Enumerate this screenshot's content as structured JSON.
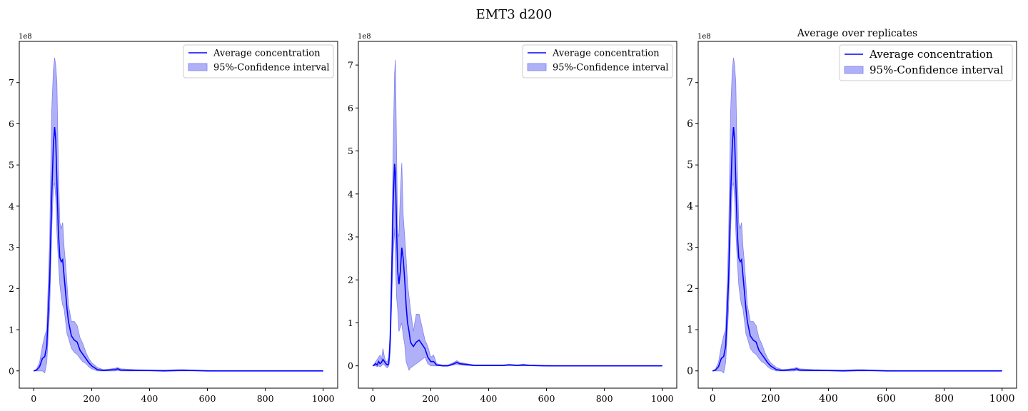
{
  "figure": {
    "title": "EMT3 d200"
  },
  "colors": {
    "line": "#0000ff",
    "band_fill": "#b0b0f8",
    "band_edge": "#8080f0"
  },
  "chart_data": [
    {
      "type": "area",
      "title": "",
      "xlabel": "",
      "ylabel": "",
      "y_offset_label": "1e8",
      "y_scale": 100000000,
      "xlim": [
        -50,
        1050
      ],
      "ylim": [
        -0.42,
        8.0
      ],
      "xticks": [
        0,
        200,
        400,
        600,
        800,
        1000
      ],
      "yticks": [
        0,
        1,
        2,
        3,
        4,
        5,
        6,
        7
      ],
      "grid": false,
      "legend": {
        "placement": "top-right",
        "entries": [
          "Average concentration",
          "95%-Confidence interval"
        ]
      },
      "series": [
        {
          "name": "Average concentration",
          "x": [
            0,
            10,
            20,
            30,
            38,
            45,
            55,
            62,
            68,
            72,
            76,
            80,
            85,
            90,
            95,
            100,
            105,
            110,
            115,
            120,
            130,
            140,
            150,
            160,
            170,
            180,
            190,
            200,
            220,
            240,
            260,
            280,
            290,
            300,
            350,
            400,
            450,
            500,
            520,
            550,
            600,
            700,
            800,
            900,
            1000
          ],
          "y": [
            0.0,
            0.02,
            0.1,
            0.3,
            0.35,
            0.6,
            2.2,
            4.2,
            5.5,
            5.92,
            5.6,
            4.6,
            3.4,
            2.75,
            2.65,
            2.7,
            2.3,
            1.9,
            1.5,
            1.2,
            0.85,
            0.75,
            0.7,
            0.5,
            0.4,
            0.3,
            0.2,
            0.12,
            0.03,
            0.01,
            0.02,
            0.03,
            0.05,
            0.02,
            0.01,
            0.01,
            0.0,
            0.01,
            0.01,
            0.01,
            0.0,
            0.0,
            0.0,
            0.0,
            0.0
          ],
          "lower": [
            0.0,
            0.0,
            0.0,
            0.0,
            -0.05,
            0.2,
            1.5,
            3.4,
            4.5,
            4.55,
            4.2,
            3.4,
            2.7,
            2.1,
            1.8,
            1.6,
            1.5,
            1.2,
            0.9,
            0.8,
            0.55,
            0.45,
            0.4,
            0.3,
            0.22,
            0.18,
            0.1,
            0.05,
            0.0,
            0.0,
            0.0,
            0.0,
            0.01,
            0.0,
            0.0,
            0.0,
            0.0,
            0.0,
            0.0,
            0.0,
            0.0,
            0.0,
            0.0,
            0.0,
            0.0
          ],
          "upper": [
            0.0,
            0.05,
            0.2,
            0.6,
            0.85,
            1.0,
            3.2,
            6.3,
            7.3,
            7.6,
            7.4,
            7.0,
            5.0,
            3.6,
            3.45,
            3.6,
            3.0,
            2.6,
            2.1,
            1.6,
            1.2,
            1.2,
            1.1,
            0.8,
            0.65,
            0.45,
            0.3,
            0.2,
            0.08,
            0.03,
            0.04,
            0.06,
            0.08,
            0.05,
            0.03,
            0.02,
            0.02,
            0.03,
            0.03,
            0.02,
            0.01,
            0.0,
            0.0,
            0.0,
            0.0
          ]
        }
      ]
    },
    {
      "type": "area",
      "title": "",
      "xlabel": "",
      "ylabel": "",
      "y_offset_label": "1e8",
      "y_scale": 100000000,
      "xlim": [
        -50,
        1050
      ],
      "ylim": [
        -0.52,
        7.55
      ],
      "xticks": [
        0,
        200,
        400,
        600,
        800,
        1000
      ],
      "yticks": [
        0,
        1,
        2,
        3,
        4,
        5,
        6,
        7
      ],
      "grid": false,
      "legend": {
        "placement": "top-right",
        "entries": [
          "Average concentration",
          "95%-Confidence interval"
        ]
      },
      "series": [
        {
          "name": "Average concentration",
          "x": [
            0,
            5,
            10,
            15,
            20,
            25,
            30,
            35,
            40,
            45,
            50,
            55,
            60,
            65,
            70,
            75,
            78,
            82,
            86,
            90,
            95,
            100,
            105,
            110,
            115,
            120,
            125,
            130,
            140,
            150,
            160,
            170,
            180,
            190,
            200,
            210,
            220,
            240,
            260,
            280,
            290,
            300,
            350,
            400,
            450,
            470,
            500,
            520,
            540,
            600,
            700,
            800,
            900,
            1000
          ],
          "y": [
            0.0,
            0.02,
            0.05,
            0.02,
            0.1,
            0.05,
            0.08,
            0.15,
            0.1,
            0.05,
            0.02,
            0.05,
            0.6,
            2.0,
            3.8,
            4.7,
            4.5,
            3.2,
            2.2,
            1.9,
            2.2,
            2.75,
            2.5,
            2.0,
            1.4,
            1.0,
            0.8,
            0.55,
            0.45,
            0.55,
            0.6,
            0.5,
            0.4,
            0.2,
            0.1,
            0.1,
            0.02,
            0.0,
            0.0,
            0.05,
            0.08,
            0.05,
            0.01,
            0.01,
            0.01,
            0.02,
            0.01,
            0.02,
            0.01,
            0.0,
            0.0,
            0.0,
            0.0,
            0.0
          ],
          "lower": [
            0.0,
            0.0,
            0.0,
            -0.02,
            0.0,
            -0.02,
            0.0,
            0.05,
            0.02,
            -0.02,
            -0.05,
            0.0,
            0.3,
            1.4,
            2.6,
            3.2,
            2.5,
            1.6,
            1.3,
            0.8,
            0.9,
            1.0,
            0.7,
            0.5,
            0.1,
            0.0,
            -0.1,
            -0.05,
            0.0,
            0.05,
            0.1,
            0.15,
            0.2,
            0.05,
            0.0,
            0.0,
            0.0,
            0.0,
            0.0,
            0.02,
            0.03,
            0.02,
            0.0,
            0.0,
            0.0,
            0.01,
            0.0,
            0.0,
            0.0,
            0.0,
            0.0,
            0.0,
            0.0,
            0.0
          ],
          "upper": [
            0.0,
            0.05,
            0.1,
            0.15,
            0.2,
            0.25,
            0.15,
            0.4,
            0.2,
            0.1,
            0.1,
            0.2,
            0.9,
            2.6,
            5.0,
            6.8,
            7.12,
            5.0,
            3.1,
            3.0,
            4.0,
            4.72,
            3.5,
            3.0,
            2.5,
            1.9,
            1.6,
            1.3,
            0.8,
            1.2,
            1.2,
            0.9,
            0.6,
            0.45,
            0.2,
            0.25,
            0.05,
            0.02,
            0.02,
            0.08,
            0.12,
            0.08,
            0.02,
            0.02,
            0.02,
            0.04,
            0.02,
            0.04,
            0.02,
            0.01,
            0.0,
            0.0,
            0.0,
            0.0
          ]
        }
      ]
    },
    {
      "type": "area",
      "title": "Average over replicates",
      "xlabel": "",
      "ylabel": "",
      "y_offset_label": "1e8",
      "y_scale": 100000000,
      "xlim": [
        -50,
        1050
      ],
      "ylim": [
        -0.42,
        8.0
      ],
      "xticks": [
        0,
        200,
        400,
        600,
        800,
        1000
      ],
      "yticks": [
        0,
        1,
        2,
        3,
        4,
        5,
        6,
        7
      ],
      "grid": false,
      "legend": {
        "placement": "top-right",
        "entries": [
          "Average concentration",
          "95%-Confidence interval"
        ]
      },
      "series": [
        {
          "name": "Average concentration",
          "x": [
            0,
            10,
            20,
            30,
            38,
            45,
            55,
            62,
            68,
            72,
            76,
            80,
            85,
            90,
            95,
            100,
            105,
            110,
            115,
            120,
            130,
            140,
            150,
            160,
            170,
            180,
            190,
            200,
            220,
            240,
            260,
            280,
            290,
            300,
            350,
            400,
            450,
            500,
            520,
            550,
            600,
            700,
            800,
            900,
            1000
          ],
          "y": [
            0.0,
            0.02,
            0.1,
            0.3,
            0.35,
            0.6,
            2.2,
            4.2,
            5.5,
            5.92,
            5.6,
            4.6,
            3.4,
            2.75,
            2.65,
            2.7,
            2.3,
            1.9,
            1.5,
            1.2,
            0.85,
            0.75,
            0.7,
            0.5,
            0.4,
            0.3,
            0.2,
            0.12,
            0.03,
            0.01,
            0.02,
            0.03,
            0.05,
            0.02,
            0.01,
            0.01,
            0.0,
            0.01,
            0.01,
            0.01,
            0.0,
            0.0,
            0.0,
            0.0,
            0.0
          ],
          "lower": [
            0.0,
            0.0,
            0.0,
            0.0,
            -0.05,
            0.2,
            1.5,
            3.4,
            4.5,
            4.55,
            4.2,
            3.4,
            2.7,
            2.1,
            1.8,
            1.6,
            1.5,
            1.2,
            0.9,
            0.8,
            0.55,
            0.45,
            0.4,
            0.3,
            0.22,
            0.18,
            0.1,
            0.05,
            0.0,
            0.0,
            0.0,
            0.0,
            0.01,
            0.0,
            0.0,
            0.0,
            0.0,
            0.0,
            0.0,
            0.0,
            0.0,
            0.0,
            0.0,
            0.0,
            0.0
          ],
          "upper": [
            0.0,
            0.05,
            0.2,
            0.6,
            0.85,
            1.0,
            3.2,
            6.3,
            7.3,
            7.6,
            7.4,
            7.0,
            5.0,
            3.6,
            3.45,
            3.6,
            3.0,
            2.6,
            2.1,
            1.6,
            1.2,
            1.2,
            1.1,
            0.8,
            0.65,
            0.45,
            0.3,
            0.2,
            0.08,
            0.03,
            0.04,
            0.06,
            0.08,
            0.05,
            0.03,
            0.02,
            0.02,
            0.03,
            0.03,
            0.02,
            0.01,
            0.0,
            0.0,
            0.0,
            0.0
          ]
        }
      ]
    }
  ]
}
